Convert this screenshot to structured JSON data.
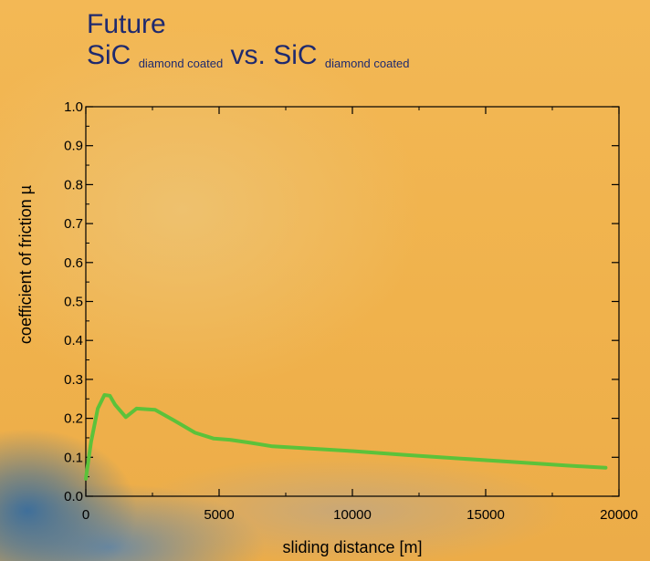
{
  "title": {
    "line1": "Future",
    "material_a": "SiC",
    "material_a_sub": "diamond coated",
    "vs": "vs.",
    "material_b": "SiC",
    "material_b_sub": "diamond coated"
  },
  "chart_data": {
    "type": "line",
    "xlabel": "sliding distance [m]",
    "ylabel": "coefficient of friction µ",
    "xlim": [
      0,
      20000
    ],
    "ylim": [
      0.0,
      1.0
    ],
    "x_ticks": [
      0,
      5000,
      10000,
      15000,
      20000
    ],
    "y_ticks": [
      "0.0",
      "0.1",
      "0.2",
      "0.3",
      "0.4",
      "0.5",
      "0.6",
      "0.7",
      "0.8",
      "0.9",
      "1.0"
    ],
    "grid": false,
    "series": [
      {
        "color": "#5cc23a",
        "x": [
          0,
          200,
          450,
          700,
          900,
          1100,
          1500,
          1900,
          2600,
          3300,
          4100,
          4800,
          5400,
          6200,
          7000,
          8500,
          10000,
          12000,
          14000,
          16000,
          18000,
          19500
        ],
        "y": [
          0.045,
          0.14,
          0.225,
          0.26,
          0.258,
          0.235,
          0.203,
          0.225,
          0.222,
          0.195,
          0.163,
          0.148,
          0.145,
          0.137,
          0.128,
          0.122,
          0.116,
          0.106,
          0.097,
          0.088,
          0.079,
          0.073
        ]
      }
    ],
    "colors": {
      "axis": "#000000",
      "title": "#1f2a6e",
      "line": "#5cc23a"
    }
  }
}
